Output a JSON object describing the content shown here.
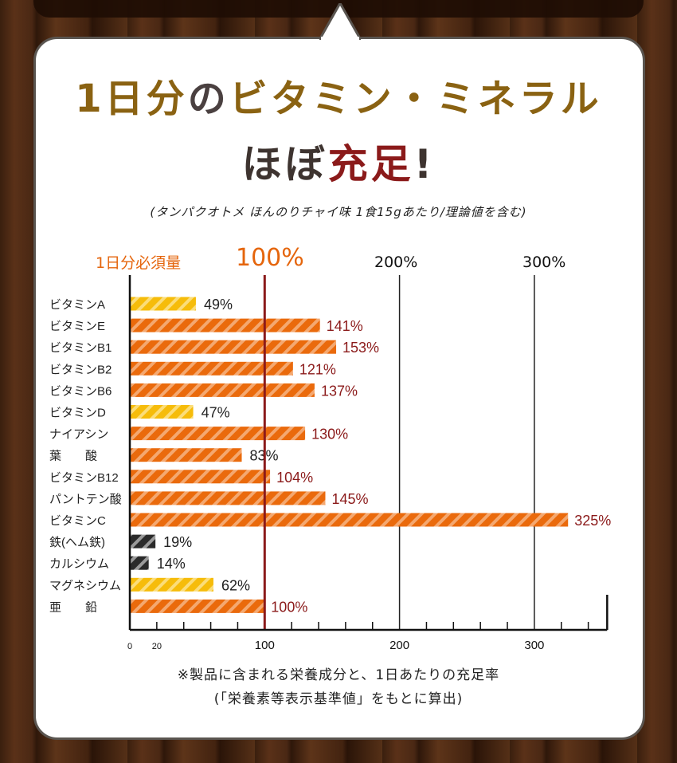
{
  "title": {
    "line1_a": "1日分",
    "line1_b": "の",
    "line1_c": "ビタミン・ミネラル",
    "line2_a": "ほぼ",
    "line2_b": "充足",
    "line2_c": "!"
  },
  "subtitle": "(タンパクオトメ ほんのりチャイ味 1食15gあたり/理論値を含む)",
  "header": {
    "label": "1日分必須量",
    "p100": "100%",
    "p200": "200%",
    "p300": "300%"
  },
  "notes": {
    "line1": "※製品に含まれる栄養成分と、1日あたりの充足率",
    "line2": "(「栄養素等表示基準値」をもとに算出)"
  },
  "colors": {
    "orange": "#ea6a0c",
    "yellow": "#f6bc0a",
    "black": "#2a2a2a",
    "dark_red": "#8b1a1a",
    "title_gold": "#8a6212"
  },
  "chart_data": {
    "type": "bar",
    "orientation": "horizontal",
    "xlim": [
      0,
      354
    ],
    "xticks": [
      0,
      20,
      100,
      200,
      300
    ],
    "minor_tick_step": 20,
    "reference_line": 100,
    "categories": [
      "ビタミンA",
      "ビタミンE",
      "ビタミンB1",
      "ビタミンB2",
      "ビタミンB6",
      "ビタミンD",
      "ナイアシン",
      "葉　　酸",
      "ビタミンB12",
      "パントテン酸",
      "ビタミンC",
      "鉄(ヘム鉄)",
      "カルシウム",
      "マグネシウム",
      "亜　　鉛"
    ],
    "values": [
      49,
      141,
      153,
      121,
      137,
      47,
      130,
      83,
      104,
      145,
      325,
      19,
      14,
      62,
      100
    ],
    "labels": [
      "49%",
      "141%",
      "153%",
      "121%",
      "137%",
      "47%",
      "130%",
      "83%",
      "104%",
      "145%",
      "325%",
      "19%",
      "14%",
      "62%",
      "100%"
    ],
    "bar_colors": [
      "yellow",
      "orange",
      "orange",
      "orange",
      "orange",
      "yellow",
      "orange",
      "orange",
      "orange",
      "orange",
      "orange",
      "black",
      "black",
      "yellow",
      "orange"
    ]
  }
}
